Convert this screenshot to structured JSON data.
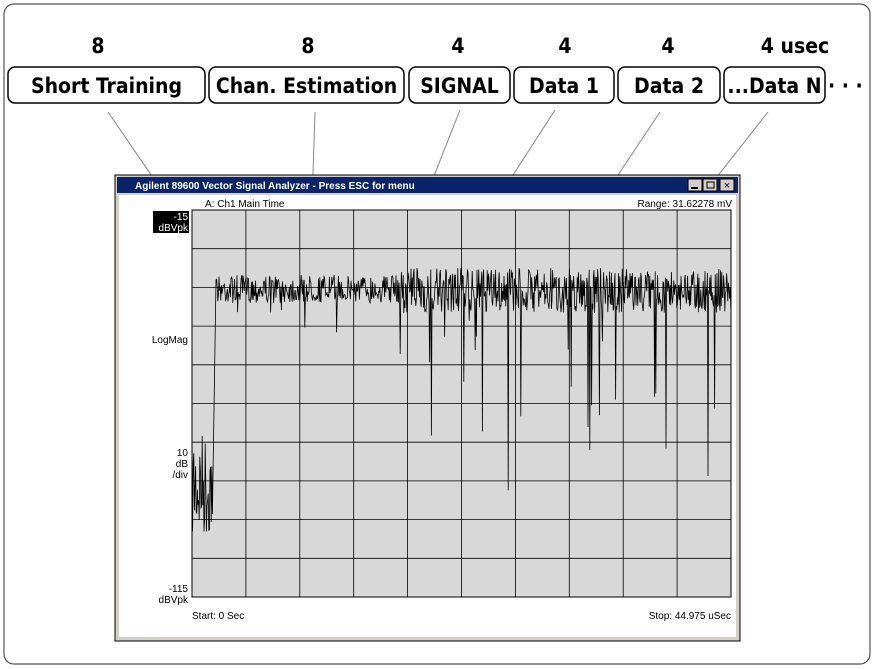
{
  "header": {
    "durations": [
      "8",
      "8",
      "4",
      "4",
      "4",
      "4 usec"
    ],
    "segments": [
      "Short Training",
      "Chan. Estimation",
      "SIGNAL",
      "Data 1",
      "Data 2",
      "...Data N"
    ],
    "continuation": "· · ·"
  },
  "window": {
    "title": "Agilent 89600 Vector Signal Analyzer - Press ESC for menu",
    "trace_label": "A: Ch1 Main Time",
    "range": "Range: 31.62278 mV",
    "y_top": [
      "-15",
      "dBVpk"
    ],
    "y_mid": "LogMag",
    "y_scale": [
      "10",
      "dB",
      "/div"
    ],
    "y_bottom": [
      "-115",
      "dBVpk"
    ],
    "start": "Start: 0 Sec",
    "stop": "Stop: 44.975 uSec"
  }
}
